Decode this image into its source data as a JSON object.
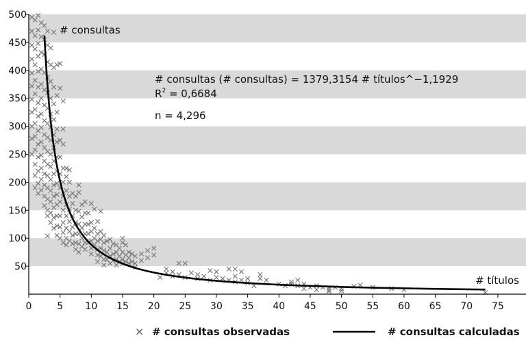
{
  "chart_data": {
    "type": "scatter",
    "xlabel": "# títulos",
    "ylabel": "# consultas",
    "xlim": [
      0,
      75
    ],
    "ylim": [
      0,
      500
    ],
    "xticks": [
      "0",
      "5",
      "10",
      "15",
      "20",
      "25",
      "30",
      "35",
      "40",
      "45",
      "50",
      "55",
      "60",
      "65",
      "70",
      "75"
    ],
    "yticks": [
      "50",
      "100",
      "150",
      "200",
      "250",
      "300",
      "350",
      "400",
      "450",
      "500"
    ],
    "grid": "alternating horizontal bands",
    "band_color": "#d9d9d9",
    "annotations": {
      "equation": "# consultas (# consultas) = 1379,3154 # títulos^−1,1929",
      "r2_prefix": "R",
      "r2_sup": "2",
      "r2_value": " = 0,6684",
      "n": "n = 4,296"
    },
    "legend_position": "bottom",
    "series": [
      {
        "name": "# consultas observadas",
        "marker": "x",
        "color": "#7a7a7a",
        "points": [
          [
            0.5,
            495
          ],
          [
            0.5,
            470
          ],
          [
            0.5,
            445
          ],
          [
            0.5,
            420
          ],
          [
            0.5,
            395
          ],
          [
            0.5,
            372
          ],
          [
            0.5,
            348
          ],
          [
            0.5,
            325
          ],
          [
            0.5,
            300
          ],
          [
            0.5,
            278
          ],
          [
            0.5,
            250
          ],
          [
            1,
            490
          ],
          [
            1,
            462
          ],
          [
            1,
            438
          ],
          [
            1,
            410
          ],
          [
            1,
            382
          ],
          [
            1,
            358
          ],
          [
            1,
            330
          ],
          [
            1,
            305
          ],
          [
            1,
            282
          ],
          [
            1,
            258
          ],
          [
            1,
            232
          ],
          [
            1,
            212
          ],
          [
            1,
            190
          ],
          [
            1.5,
            498
          ],
          [
            1.5,
            472
          ],
          [
            1.5,
            448
          ],
          [
            1.5,
            425
          ],
          [
            1.5,
            398
          ],
          [
            1.5,
            370
          ],
          [
            1.5,
            342
          ],
          [
            1.5,
            318
          ],
          [
            1.5,
            292
          ],
          [
            1.5,
            268
          ],
          [
            1.5,
            245
          ],
          [
            1.5,
            220
          ],
          [
            1.5,
            198
          ],
          [
            1.5,
            180
          ],
          [
            2,
            485
          ],
          [
            2,
            460
          ],
          [
            2,
            432
          ],
          [
            2,
            402
          ],
          [
            2,
            375
          ],
          [
            2,
            350
          ],
          [
            2,
            322
          ],
          [
            2,
            298
          ],
          [
            2,
            272
          ],
          [
            2,
            248
          ],
          [
            2,
            225
          ],
          [
            2,
            205
          ],
          [
            2,
            186
          ],
          [
            2.5,
            480
          ],
          [
            2.5,
            455
          ],
          [
            2.5,
            428
          ],
          [
            2.5,
            396
          ],
          [
            2.5,
            365
          ],
          [
            2.5,
            338
          ],
          [
            2.5,
            310
          ],
          [
            2.5,
            285
          ],
          [
            2.5,
            262
          ],
          [
            2.5,
            238
          ],
          [
            2.5,
            215
          ],
          [
            2.5,
            195
          ],
          [
            2.5,
            175
          ],
          [
            2.5,
            158
          ],
          [
            3,
            470
          ],
          [
            3,
            445
          ],
          [
            3,
            415
          ],
          [
            3,
            388
          ],
          [
            3,
            360
          ],
          [
            3,
            332
          ],
          [
            3,
            305
          ],
          [
            3,
            280
          ],
          [
            3,
            255
          ],
          [
            3,
            232
          ],
          [
            3,
            212
          ],
          [
            3,
            190
          ],
          [
            3,
            170
          ],
          [
            3,
            150
          ],
          [
            3,
            140
          ],
          [
            3,
            104
          ],
          [
            3.5,
            440
          ],
          [
            3.5,
            410
          ],
          [
            3.5,
            380
          ],
          [
            3.5,
            350
          ],
          [
            3.5,
            322
          ],
          [
            3.5,
            298
          ],
          [
            3.5,
            275
          ],
          [
            3.5,
            250
          ],
          [
            3.5,
            228
          ],
          [
            3.5,
            205
          ],
          [
            3.5,
            185
          ],
          [
            3.5,
            165
          ],
          [
            3.5,
            145
          ],
          [
            3.5,
            128
          ],
          [
            4,
            468
          ],
          [
            4,
            405
          ],
          [
            4,
            370
          ],
          [
            4,
            340
          ],
          [
            4,
            312
          ],
          [
            4,
            285
          ],
          [
            4,
            262
          ],
          [
            4,
            238
          ],
          [
            4,
            215
          ],
          [
            4,
            195
          ],
          [
            4,
            175
          ],
          [
            4,
            155
          ],
          [
            4,
            137
          ],
          [
            4,
            118
          ],
          [
            4.5,
            410
          ],
          [
            4.5,
            355
          ],
          [
            4.5,
            325
          ],
          [
            4.5,
            295
          ],
          [
            4.5,
            272
          ],
          [
            4.5,
            245
          ],
          [
            4.5,
            220
          ],
          [
            4.5,
            198
          ],
          [
            4.5,
            178
          ],
          [
            4.5,
            160
          ],
          [
            4.5,
            140
          ],
          [
            4.5,
            122
          ],
          [
            4.5,
            105
          ],
          [
            5,
            412
          ],
          [
            5,
            368
          ],
          [
            5,
            275
          ],
          [
            5,
            245
          ],
          [
            5,
            215
          ],
          [
            5,
            190
          ],
          [
            5,
            165
          ],
          [
            5,
            140
          ],
          [
            5,
            120
          ],
          [
            5,
            100
          ],
          [
            5.5,
            345
          ],
          [
            5.5,
            295
          ],
          [
            5.5,
            268
          ],
          [
            5.5,
            225
          ],
          [
            5.5,
            200
          ],
          [
            5.5,
            175
          ],
          [
            5.5,
            150
          ],
          [
            5.5,
            128
          ],
          [
            5.5,
            110
          ],
          [
            5.5,
            92
          ],
          [
            6,
            225
          ],
          [
            6,
            210
          ],
          [
            6,
            185
          ],
          [
            6,
            160
          ],
          [
            6,
            140
          ],
          [
            6,
            118
          ],
          [
            6,
            100
          ],
          [
            6,
            88
          ],
          [
            6.5,
            222
          ],
          [
            6.5,
            200
          ],
          [
            6.5,
            175
          ],
          [
            6.5,
            152
          ],
          [
            6.5,
            130
          ],
          [
            6.5,
            112
          ],
          [
            6.5,
            95
          ],
          [
            7,
            180
          ],
          [
            7,
            162
          ],
          [
            7,
            140
          ],
          [
            7,
            120
          ],
          [
            7,
            105
          ],
          [
            7,
            90
          ],
          [
            7.5,
            175
          ],
          [
            7.5,
            150
          ],
          [
            7.5,
            128
          ],
          [
            7.5,
            108
          ],
          [
            7.5,
            92
          ],
          [
            7.5,
            80
          ],
          [
            8,
            195
          ],
          [
            8,
            182
          ],
          [
            8,
            148
          ],
          [
            8,
            125
          ],
          [
            8,
            108
          ],
          [
            8,
            90
          ],
          [
            8,
            75
          ],
          [
            8.5,
            160
          ],
          [
            8.5,
            138
          ],
          [
            8.5,
            118
          ],
          [
            8.5,
            100
          ],
          [
            8.5,
            85
          ],
          [
            9,
            165
          ],
          [
            9,
            145
          ],
          [
            9,
            125
          ],
          [
            9,
            108
          ],
          [
            9,
            92
          ],
          [
            9,
            80
          ],
          [
            9.5,
            145
          ],
          [
            9.5,
            125
          ],
          [
            9.5,
            108
          ],
          [
            9.5,
            92
          ],
          [
            10,
            162
          ],
          [
            10,
            128
          ],
          [
            10,
            112
          ],
          [
            10,
            95
          ],
          [
            10,
            82
          ],
          [
            10,
            72
          ],
          [
            10.5,
            152
          ],
          [
            10.5,
            118
          ],
          [
            10.5,
            100
          ],
          [
            10.5,
            88
          ],
          [
            11,
            130
          ],
          [
            11,
            108
          ],
          [
            11,
            95
          ],
          [
            11,
            80
          ],
          [
            11,
            70
          ],
          [
            11,
            58
          ],
          [
            11.5,
            148
          ],
          [
            11.5,
            112
          ],
          [
            11.5,
            98
          ],
          [
            11.5,
            82
          ],
          [
            11.5,
            68
          ],
          [
            12,
            105
          ],
          [
            12,
            92
          ],
          [
            12,
            78
          ],
          [
            12,
            62
          ],
          [
            12,
            52
          ],
          [
            12.5,
            95
          ],
          [
            12.5,
            75
          ],
          [
            12.5,
            62
          ],
          [
            13,
            98
          ],
          [
            13,
            82
          ],
          [
            13,
            68
          ],
          [
            13,
            55
          ],
          [
            13.5,
            90
          ],
          [
            13.5,
            72
          ],
          [
            13.5,
            60
          ],
          [
            14,
            88
          ],
          [
            14,
            75
          ],
          [
            14,
            62
          ],
          [
            14,
            52
          ],
          [
            14.5,
            82
          ],
          [
            14.5,
            68
          ],
          [
            14.5,
            58
          ],
          [
            15,
            100
          ],
          [
            15,
            92
          ],
          [
            15,
            75
          ],
          [
            15,
            62
          ],
          [
            15,
            55
          ],
          [
            15.5,
            88
          ],
          [
            15.5,
            70
          ],
          [
            15.5,
            58
          ],
          [
            16,
            75
          ],
          [
            16,
            65
          ],
          [
            16,
            55
          ],
          [
            16.5,
            72
          ],
          [
            16.5,
            58
          ],
          [
            17,
            68
          ],
          [
            17,
            55
          ],
          [
            17,
            48
          ],
          [
            18,
            72
          ],
          [
            18,
            60
          ],
          [
            19,
            78
          ],
          [
            19,
            65
          ],
          [
            20,
            82
          ],
          [
            20,
            70
          ],
          [
            21,
            30
          ],
          [
            22,
            45
          ],
          [
            22,
            38
          ],
          [
            23,
            40
          ],
          [
            23,
            32
          ],
          [
            24,
            55
          ],
          [
            24,
            35
          ],
          [
            25,
            55
          ],
          [
            25,
            30
          ],
          [
            26,
            38
          ],
          [
            27,
            35
          ],
          [
            27,
            28
          ],
          [
            28,
            32
          ],
          [
            29,
            42
          ],
          [
            29,
            25
          ],
          [
            30,
            40
          ],
          [
            30,
            30
          ],
          [
            31,
            28
          ],
          [
            32,
            45
          ],
          [
            32,
            25
          ],
          [
            33,
            45
          ],
          [
            33,
            32
          ],
          [
            33,
            22
          ],
          [
            34,
            40
          ],
          [
            34,
            25
          ],
          [
            35,
            28
          ],
          [
            35,
            20
          ],
          [
            36,
            15
          ],
          [
            37,
            35
          ],
          [
            37,
            28
          ],
          [
            38,
            25
          ],
          [
            40,
            18
          ],
          [
            41,
            15
          ],
          [
            42,
            22
          ],
          [
            42,
            18
          ],
          [
            43,
            25
          ],
          [
            43,
            15
          ],
          [
            44,
            18
          ],
          [
            44,
            10
          ],
          [
            45,
            12
          ],
          [
            46,
            15
          ],
          [
            46,
            8
          ],
          [
            47,
            12
          ],
          [
            48,
            12
          ],
          [
            48,
            8
          ],
          [
            48,
            5
          ],
          [
            49,
            12
          ],
          [
            50,
            10
          ],
          [
            50,
            6
          ],
          [
            52,
            14
          ],
          [
            53,
            16
          ],
          [
            55,
            12
          ],
          [
            58,
            10
          ],
          [
            60,
            8
          ],
          [
            73,
            3
          ]
        ]
      },
      {
        "name": "# consultas calculadas",
        "type": "line",
        "color": "#000000",
        "formula": {
          "a": 1379.3154,
          "b": -1.1929
        },
        "x_range": [
          2.5,
          73
        ]
      }
    ]
  }
}
